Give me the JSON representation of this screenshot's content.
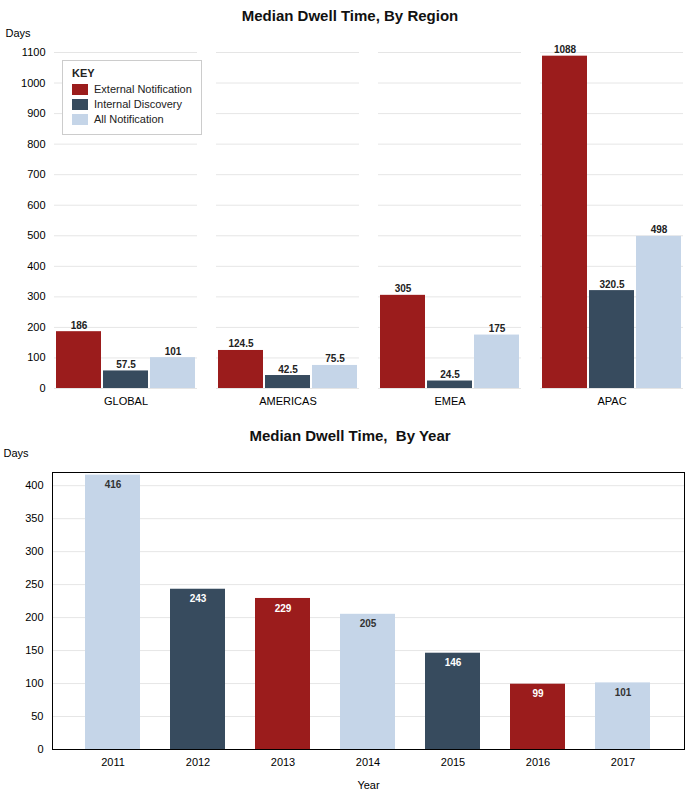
{
  "chart_data": [
    {
      "type": "bar",
      "title": "Median Dwell Time, By Region",
      "categories": [
        "GLOBAL",
        "AMERICAS",
        "EMEA",
        "APAC"
      ],
      "series": [
        {
          "name": "External Notification",
          "color": "#9B1C1C",
          "values": [
            186,
            124.5,
            305,
            1088
          ]
        },
        {
          "name": "Internal Discovery",
          "color": "#374B5E",
          "values": [
            57.5,
            42.5,
            24.5,
            320.5
          ]
        },
        {
          "name": "All Notification",
          "color": "#C5D5E8",
          "values": [
            101,
            75.5,
            175,
            498
          ]
        }
      ],
      "ylabel": "Days",
      "ylim": [
        0,
        1100
      ],
      "yticks": [
        0,
        100,
        200,
        300,
        400,
        500,
        600,
        700,
        800,
        900,
        1000,
        1100
      ],
      "grid": true,
      "legend": "upper left",
      "legend_title": "KEY",
      "data_labels": true
    },
    {
      "type": "bar",
      "title": "Median Dwell Time,  By Year",
      "categories": [
        "2011",
        "2012",
        "2013",
        "2014",
        "2015",
        "2016",
        "2017"
      ],
      "values": [
        416,
        243,
        229,
        205,
        146,
        99,
        101
      ],
      "colors": [
        "#C5D5E8",
        "#374B5E",
        "#9B1C1C",
        "#C5D5E8",
        "#374B5E",
        "#9B1C1C",
        "#C5D5E8"
      ],
      "xlabel": "Year",
      "ylabel": "Days",
      "ylim": [
        0,
        420
      ],
      "yticks": [
        0,
        50,
        100,
        150,
        200,
        250,
        300,
        350,
        400
      ],
      "grid": true,
      "data_labels": true
    }
  ]
}
